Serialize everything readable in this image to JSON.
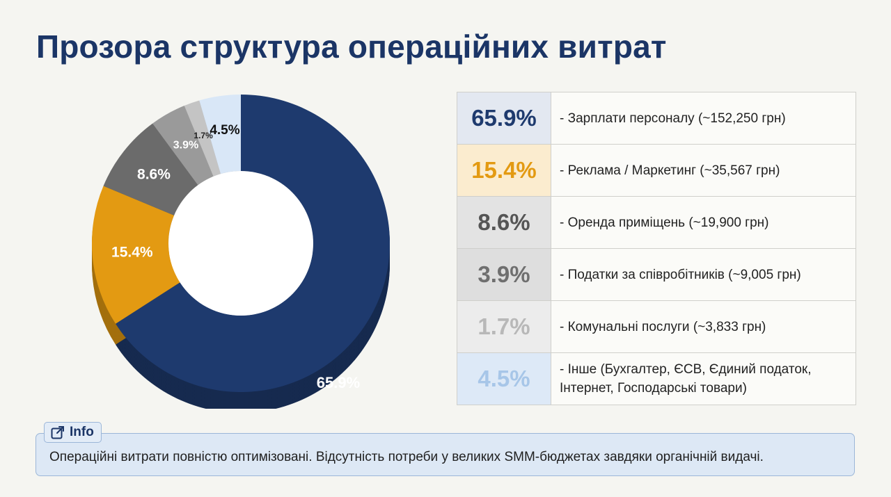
{
  "title": "Прозора структура операційних витрат",
  "chart_data": {
    "type": "pie",
    "subtype": "donut",
    "series": [
      {
        "value_label": "65.9%",
        "value": 65.9,
        "label": "- Зарплати персоналу (~152,250 грн)",
        "color": "#1e3a6e",
        "text_color": "#1e3a6e",
        "bg": "#e3e8f1"
      },
      {
        "value_label": "15.4%",
        "value": 15.4,
        "label": "- Реклама / Маркетинг (~35,567 грн)",
        "color": "#e39a12",
        "text_color": "#e39a12",
        "bg": "#fbeccf"
      },
      {
        "value_label": "8.6%",
        "value": 8.6,
        "label": "- Оренда приміщень (~19,900 грн)",
        "color": "#6b6b6b",
        "text_color": "#555555",
        "bg": "#e3e3e3"
      },
      {
        "value_label": "3.9%",
        "value": 3.9,
        "label": "- Податки за співробітників (~9,005 грн)",
        "color": "#9a9a9a",
        "text_color": "#6f6f6f",
        "bg": "#dedede"
      },
      {
        "value_label": "1.7%",
        "value": 1.7,
        "label": "- Комунальні послуги (~3,833 грн)",
        "color": "#c4c4c4",
        "text_color": "#b8b8b8",
        "bg": "#ececec"
      },
      {
        "value_label": "4.5%",
        "value": 4.5,
        "label": "- Інше (Бухгалтер, ЄСВ, Єдиний податок, Інтернет, Господарські товари)",
        "color": "#d9e7f7",
        "text_color": "#a7c6e8",
        "bg": "#dde9f7"
      }
    ]
  },
  "info": {
    "tag": "Info",
    "text": "Операційні витрати повністю оптимізовані. Відсутність потреби у великих SMM-бюджетах завдяки органічній видачі."
  }
}
